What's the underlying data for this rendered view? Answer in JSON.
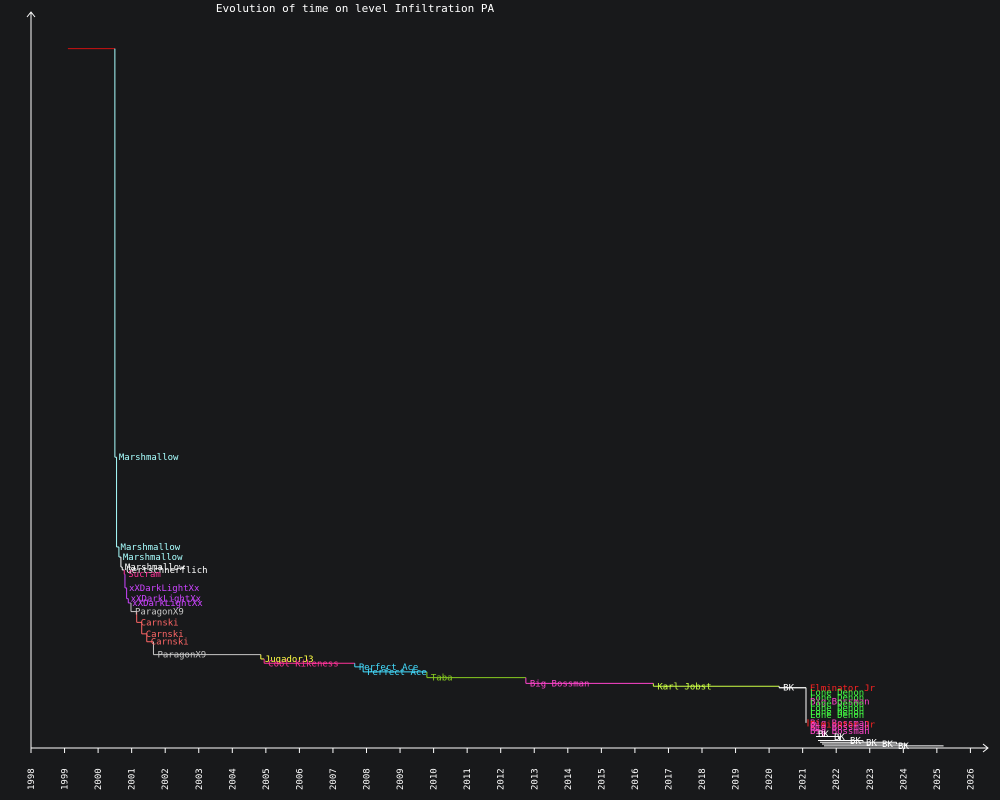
{
  "chart_data": {
    "type": "line",
    "title": "Evolution of time on level Infiltration PA",
    "xlabel": "",
    "ylabel": "",
    "x_ticks": [
      "1998",
      "1999",
      "2000",
      "2001",
      "2002",
      "2003",
      "2004",
      "2005",
      "2006",
      "2007",
      "2008",
      "2009",
      "2010",
      "2011",
      "2012",
      "2013",
      "2014",
      "2015",
      "2016",
      "2017",
      "2018",
      "2019",
      "2020",
      "2021",
      "2022",
      "2023",
      "2024",
      "2025",
      "2026"
    ],
    "xlim": [
      1998,
      2026.5
    ],
    "ylim": [
      0,
      100
    ],
    "grid": false,
    "legend": "none",
    "records": [
      {
        "name": "",
        "start": 1999.1,
        "end": 2000.5,
        "value": 97.4,
        "color": "#cc1111"
      },
      {
        "name": "Marshmallow",
        "start": 2000.5,
        "end": 2000.55,
        "value": 40.5,
        "color": "#a8ffff"
      },
      {
        "name": "Marshmallow",
        "start": 2000.55,
        "end": 2000.62,
        "value": 28.0,
        "color": "#a8ffff"
      },
      {
        "name": "Marshmallow",
        "start": 2000.62,
        "end": 2000.68,
        "value": 26.6,
        "color": "#a8ffff"
      },
      {
        "name": "Marshmallow",
        "start": 2000.68,
        "end": 2000.72,
        "value": 25.2,
        "color": "#ffffff"
      },
      {
        "name": "Gertschnerflich",
        "start": 2000.72,
        "end": 2000.78,
        "value": 24.8,
        "color": "#ffffff"
      },
      {
        "name": "Sucram",
        "start": 2000.78,
        "end": 2000.8,
        "value": 24.2,
        "color": "#ff3399"
      },
      {
        "name": "xXDarkLightXx",
        "start": 2000.8,
        "end": 2000.85,
        "value": 22.3,
        "color": "#cc44ff"
      },
      {
        "name": "xXDarkLightXx",
        "start": 2000.85,
        "end": 2000.9,
        "value": 20.8,
        "color": "#cc44ff"
      },
      {
        "name": "xXDarkLightXx",
        "start": 2000.9,
        "end": 2000.98,
        "value": 20.2,
        "color": "#cc44ff"
      },
      {
        "name": "ParagonX9",
        "start": 2000.98,
        "end": 2001.15,
        "value": 19.0,
        "color": "#c8c8c8"
      },
      {
        "name": "Carnski",
        "start": 2001.15,
        "end": 2001.3,
        "value": 17.5,
        "color": "#ff6666"
      },
      {
        "name": "Carnski",
        "start": 2001.3,
        "end": 2001.45,
        "value": 15.9,
        "color": "#ff6666"
      },
      {
        "name": "Carnski",
        "start": 2001.45,
        "end": 2001.65,
        "value": 14.8,
        "color": "#ff6666"
      },
      {
        "name": "ParagonX9",
        "start": 2001.65,
        "end": 2004.85,
        "value": 13.0,
        "color": "#c8c8c8"
      },
      {
        "name": "JugadorJ3",
        "start": 2004.85,
        "end": 2004.95,
        "value": 12.4,
        "color": "#ffff44"
      },
      {
        "name": "Cool Kikeness",
        "start": 2004.95,
        "end": 2007.65,
        "value": 11.8,
        "color": "#ff3399"
      },
      {
        "name": "Perfect Ace",
        "start": 2007.65,
        "end": 2007.9,
        "value": 11.3,
        "color": "#44ddff"
      },
      {
        "name": "Perfect Ace",
        "start": 2007.9,
        "end": 2009.8,
        "value": 10.6,
        "color": "#44ddff"
      },
      {
        "name": "Taba",
        "start": 2009.8,
        "end": 2012.75,
        "value": 9.8,
        "color": "#88cc22"
      },
      {
        "name": "Big Bossman",
        "start": 2012.75,
        "end": 2016.55,
        "value": 9.0,
        "color": "#ff44cc"
      },
      {
        "name": "Karl Jobst",
        "start": 2016.55,
        "end": 2020.3,
        "value": 8.6,
        "color": "#ccff44"
      },
      {
        "name": "BK",
        "start": 2020.3,
        "end": 2021.1,
        "value": 8.4,
        "color": "#ffffff"
      }
    ],
    "drop_x": 2021.1,
    "late_labels": [
      {
        "name": "Elminator Jr",
        "value": 8.35,
        "color": "#ff2222"
      },
      {
        "name": "Lone Denon",
        "value": 7.7,
        "color": "#44ff44"
      },
      {
        "name": "Lone Denon",
        "value": 7.0,
        "color": "#44ff44"
      },
      {
        "name": "Big Bossman",
        "value": 6.5,
        "color": "#ff44cc"
      },
      {
        "name": "Lone Denon",
        "value": 6.2,
        "color": "#44ff44"
      },
      {
        "name": "Lone Denon",
        "value": 5.6,
        "color": "#44ff44"
      },
      {
        "name": "Lone Denon",
        "value": 5.0,
        "color": "#44ff44"
      },
      {
        "name": "Lone Denon",
        "value": 4.6,
        "color": "#44ff44"
      },
      {
        "name": "Big Bossman",
        "value": 3.5,
        "color": "#ff44cc"
      },
      {
        "name": "Elminator Jr",
        "value": 3.3,
        "color": "#ff2222"
      },
      {
        "name": "Big Bossman",
        "value": 2.9,
        "color": "#ff44cc"
      },
      {
        "name": "Big Bossman",
        "value": 2.4,
        "color": "#ff44cc"
      },
      {
        "name": "BK",
        "value": 1.95,
        "color": "#ffffff"
      },
      {
        "name": "BK",
        "value": 1.55,
        "color": "#ffffff"
      },
      {
        "name": "BK",
        "value": 1.05,
        "color": "#ffffff"
      },
      {
        "name": "BK",
        "value": 0.8,
        "color": "#ffffff"
      },
      {
        "name": "BK",
        "value": 0.55,
        "color": "#ffffff"
      },
      {
        "name": "BK",
        "value": 0.3,
        "color": "#ffffff"
      }
    ],
    "late_lines": [
      {
        "value": 8.4,
        "end": 2021.1,
        "color": "#ffffff"
      },
      {
        "value": 3.5,
        "end": 2021.4,
        "color": "#ff44cc"
      },
      {
        "value": 2.4,
        "end": 2021.6,
        "color": "#ff44cc"
      },
      {
        "value": 1.6,
        "end": 2022.1,
        "color": "#ffffff"
      },
      {
        "value": 1.05,
        "end": 2022.8,
        "color": "#ffffff"
      },
      {
        "value": 0.8,
        "end": 2023.8,
        "color": "#ffffff"
      },
      {
        "value": 0.55,
        "end": 2024.1,
        "color": "#ffffff"
      },
      {
        "value": 0.3,
        "end": 2025.2,
        "color": "#ffffff"
      }
    ]
  },
  "colors": {
    "background": "#18191b",
    "axis": "#ffffff"
  }
}
